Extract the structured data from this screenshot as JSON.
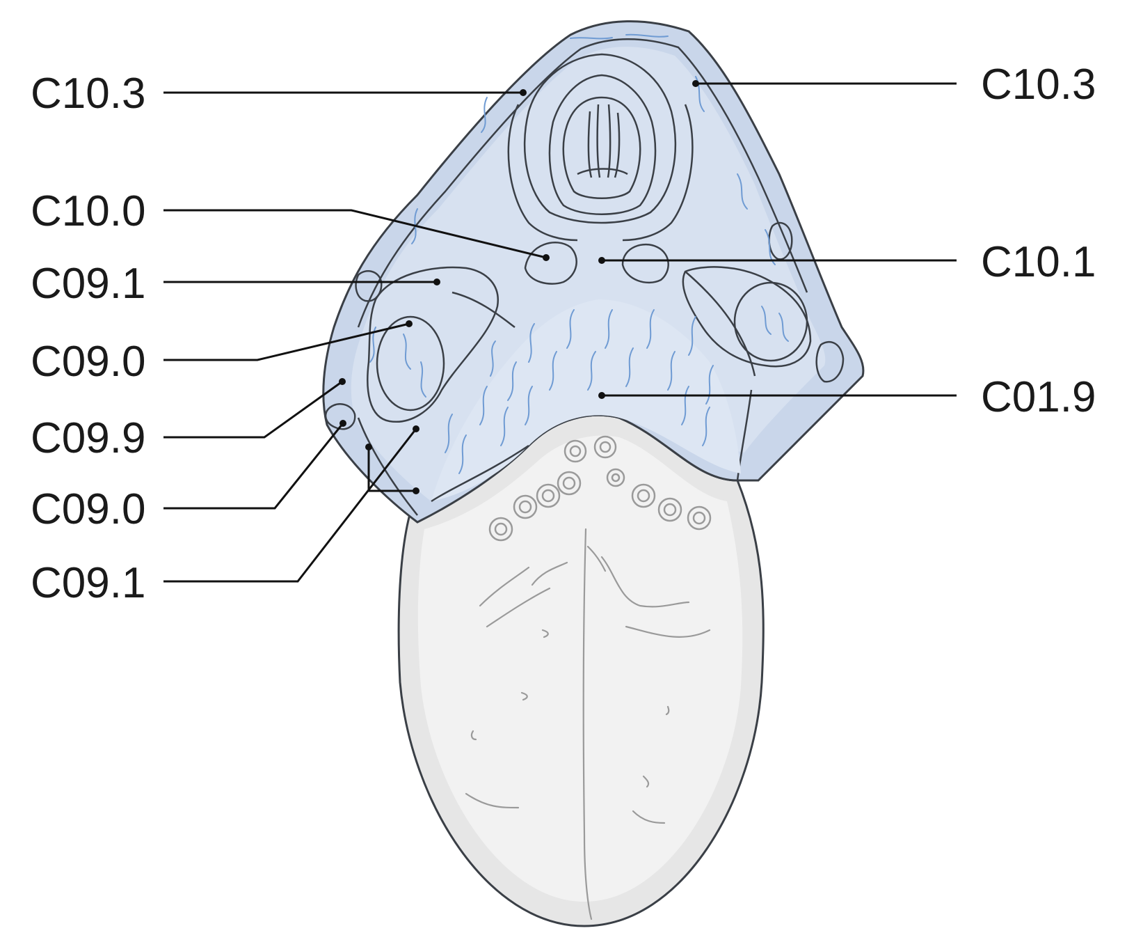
{
  "labels": {
    "left": [
      "C10.3",
      "C10.0",
      "C09.1",
      "C09.0",
      "C09.9",
      "C09.0",
      "C09.1"
    ],
    "right": [
      "C10.3",
      "C10.1",
      "C01.9"
    ]
  },
  "colors": {
    "tissue_blue": "#c9d6ea",
    "tissue_blue_dark": "#a7bcdc",
    "tissue_blue_light": "#dde6f3",
    "tongue_grey": "#e4e4e4",
    "tongue_grey_light": "#efefef",
    "outline": "#3a3f46",
    "leader": "#111111"
  }
}
